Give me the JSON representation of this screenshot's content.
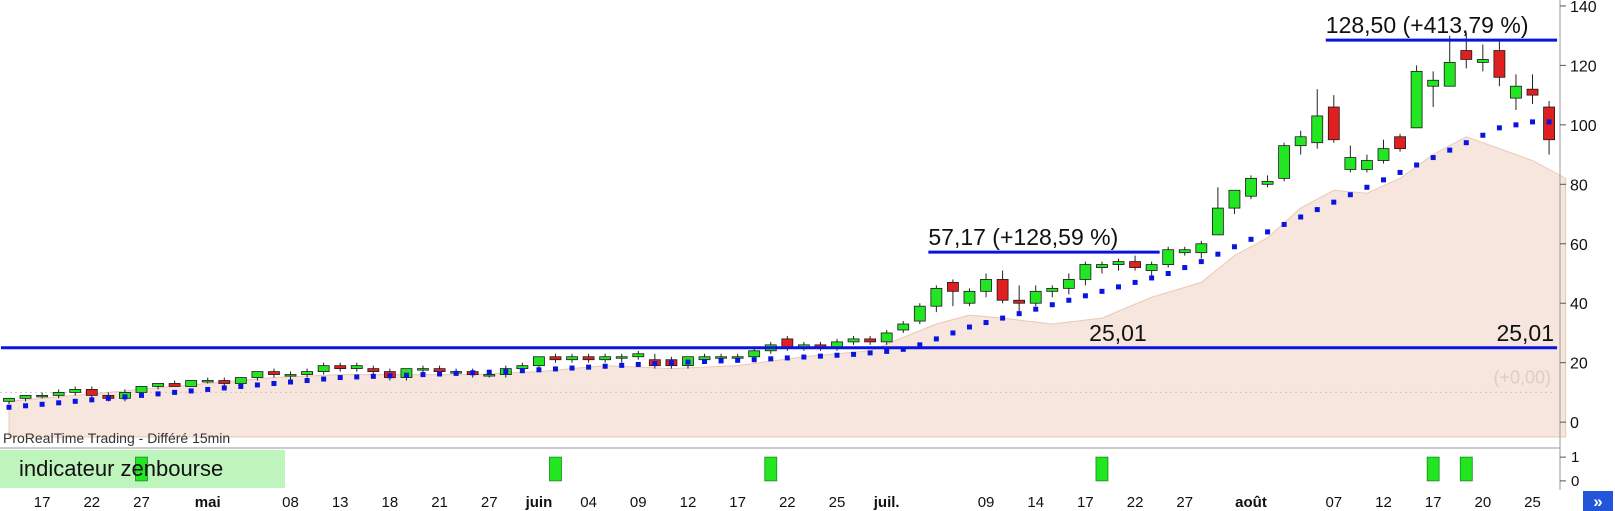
{
  "source_label": "ProRealTime Trading - Différé 15min",
  "indicator_label": "indicateur zenbourse",
  "nav_icon": "double-chevron-right-icon",
  "colors": {
    "up": "#22e622",
    "down": "#e02020",
    "wick": "#222222",
    "trail_dots": "#0a14e0",
    "hlines": "#0a14e0",
    "area_fill": "#f6e6de",
    "area_stroke": "#ecc8b6",
    "signal": "#22e622",
    "indicator_label_bg": "#bdf5bd",
    "nav_button": "#2255d8"
  },
  "chart_data": {
    "type": "candlestick",
    "ylim": [
      -5,
      142
    ],
    "y_ticks": [
      "0",
      "20",
      "40",
      "60",
      "80",
      "100",
      "120",
      "140"
    ],
    "y_tick_values": [
      0,
      20,
      40,
      60,
      80,
      100,
      120,
      140
    ],
    "x_labels": [
      {
        "i": 2,
        "t": "17",
        "bold": false
      },
      {
        "i": 5,
        "t": "22",
        "bold": false
      },
      {
        "i": 8,
        "t": "27",
        "bold": false
      },
      {
        "i": 12,
        "t": "mai",
        "bold": true
      },
      {
        "i": 17,
        "t": "08",
        "bold": false
      },
      {
        "i": 20,
        "t": "13",
        "bold": false
      },
      {
        "i": 23,
        "t": "18",
        "bold": false
      },
      {
        "i": 26,
        "t": "21",
        "bold": false
      },
      {
        "i": 29,
        "t": "27",
        "bold": false
      },
      {
        "i": 32,
        "t": "juin",
        "bold": true
      },
      {
        "i": 35,
        "t": "04",
        "bold": false
      },
      {
        "i": 38,
        "t": "09",
        "bold": false
      },
      {
        "i": 41,
        "t": "12",
        "bold": false
      },
      {
        "i": 44,
        "t": "17",
        "bold": false
      },
      {
        "i": 47,
        "t": "22",
        "bold": false
      },
      {
        "i": 50,
        "t": "25",
        "bold": false
      },
      {
        "i": 53,
        "t": "juil.",
        "bold": true
      },
      {
        "i": 59,
        "t": "09",
        "bold": false
      },
      {
        "i": 62,
        "t": "14",
        "bold": false
      },
      {
        "i": 65,
        "t": "17",
        "bold": false
      },
      {
        "i": 68,
        "t": "22",
        "bold": false
      },
      {
        "i": 71,
        "t": "27",
        "bold": false
      },
      {
        "i": 75,
        "t": "août",
        "bold": true
      },
      {
        "i": 80,
        "t": "07",
        "bold": false
      },
      {
        "i": 83,
        "t": "12",
        "bold": false
      },
      {
        "i": 86,
        "t": "17",
        "bold": false
      },
      {
        "i": 89,
        "t": "20",
        "bold": false
      },
      {
        "i": 92,
        "t": "25",
        "bold": false
      }
    ],
    "candles": [
      [
        7,
        8,
        6,
        8
      ],
      [
        8,
        9,
        7,
        9
      ],
      [
        9,
        10,
        8,
        9
      ],
      [
        9,
        11,
        8,
        10
      ],
      [
        10,
        12,
        9,
        11
      ],
      [
        11,
        12,
        8,
        9
      ],
      [
        9,
        10,
        7,
        8
      ],
      [
        8,
        11,
        7,
        10
      ],
      [
        10,
        12,
        9,
        12
      ],
      [
        12,
        13,
        11,
        13
      ],
      [
        13,
        14,
        12,
        12
      ],
      [
        12,
        14,
        12,
        14
      ],
      [
        14,
        15,
        13,
        14
      ],
      [
        14,
        15,
        12,
        13
      ],
      [
        13,
        15,
        12,
        15
      ],
      [
        15,
        17,
        14,
        17
      ],
      [
        17,
        18,
        15,
        16
      ],
      [
        16,
        17,
        14,
        16
      ],
      [
        16,
        18,
        15,
        17
      ],
      [
        17,
        20,
        16,
        19
      ],
      [
        19,
        20,
        17,
        18
      ],
      [
        18,
        20,
        17,
        19
      ],
      [
        18,
        19,
        16,
        17
      ],
      [
        17,
        18,
        14,
        15
      ],
      [
        15,
        18,
        14,
        18
      ],
      [
        18,
        19,
        16,
        18
      ],
      [
        18,
        19,
        16,
        17
      ],
      [
        17,
        18,
        16,
        17
      ],
      [
        17,
        18,
        15,
        16
      ],
      [
        16,
        17,
        15,
        16
      ],
      [
        16,
        19,
        15,
        18
      ],
      [
        18,
        20,
        17,
        19
      ],
      [
        19,
        22,
        18,
        22
      ],
      [
        22,
        23,
        20,
        21
      ],
      [
        21,
        23,
        20,
        22
      ],
      [
        22,
        23,
        20,
        21
      ],
      [
        21,
        23,
        20,
        22
      ],
      [
        22,
        23,
        20,
        22
      ],
      [
        22,
        24,
        21,
        23
      ],
      [
        21,
        23,
        18,
        19
      ],
      [
        21,
        22,
        18,
        19
      ],
      [
        19,
        22,
        18,
        22
      ],
      [
        21,
        23,
        20,
        22
      ],
      [
        22,
        23,
        21,
        22
      ],
      [
        22,
        23,
        21,
        22
      ],
      [
        22,
        25,
        21,
        24
      ],
      [
        24,
        27,
        23,
        26
      ],
      [
        28,
        29,
        24,
        25
      ],
      [
        25,
        27,
        24,
        26
      ],
      [
        26,
        27,
        24,
        25
      ],
      [
        25,
        28,
        24,
        27
      ],
      [
        27,
        29,
        26,
        28
      ],
      [
        28,
        29,
        26,
        27
      ],
      [
        27,
        31,
        26,
        30
      ],
      [
        31,
        34,
        30,
        33
      ],
      [
        34,
        40,
        33,
        39
      ],
      [
        39,
        46,
        37,
        45
      ],
      [
        47,
        48,
        39,
        44
      ],
      [
        40,
        45,
        39,
        44
      ],
      [
        44,
        50,
        42,
        48
      ],
      [
        48,
        51,
        40,
        41
      ],
      [
        41,
        46,
        37,
        40
      ],
      [
        40,
        46,
        39,
        44
      ],
      [
        44,
        46,
        42,
        45
      ],
      [
        45,
        50,
        43,
        48
      ],
      [
        48,
        54,
        46,
        53
      ],
      [
        52,
        54,
        50,
        53
      ],
      [
        53,
        55,
        51,
        54
      ],
      [
        54,
        56,
        51,
        52
      ],
      [
        51,
        54,
        49,
        53
      ],
      [
        53,
        59,
        52,
        58
      ],
      [
        57,
        59,
        56,
        58
      ],
      [
        57,
        61,
        55,
        60
      ],
      [
        63,
        79,
        64,
        72
      ],
      [
        72,
        78,
        70,
        78
      ],
      [
        76,
        83,
        75,
        82
      ],
      [
        80,
        83,
        79,
        81
      ],
      [
        82,
        94,
        81,
        93
      ],
      [
        93,
        98,
        90,
        96
      ],
      [
        94,
        112,
        92,
        103
      ],
      [
        106,
        110,
        94,
        95
      ],
      [
        85,
        93,
        84,
        89
      ],
      [
        85,
        90,
        84,
        88
      ],
      [
        88,
        95,
        87,
        92
      ],
      [
        96,
        97,
        91,
        92
      ],
      [
        99,
        120,
        99,
        118
      ],
      [
        113,
        118,
        106,
        115
      ],
      [
        113,
        130,
        113,
        121
      ],
      [
        125,
        131,
        119,
        122
      ],
      [
        121,
        127,
        118,
        122
      ],
      [
        125,
        128,
        113,
        116
      ],
      [
        109,
        117,
        105,
        113
      ],
      [
        112,
        117,
        107,
        110
      ],
      [
        106,
        108,
        90,
        95
      ]
    ],
    "trailing_stop": [
      5,
      5.5,
      6,
      6.5,
      7,
      7.5,
      8,
      8.5,
      9,
      9.5,
      10,
      10.5,
      11,
      11.5,
      12,
      12.5,
      13,
      13.5,
      14,
      14.5,
      15,
      15.2,
      15.4,
      15.6,
      15.8,
      16,
      16.2,
      16.4,
      16.6,
      16.8,
      17,
      17.3,
      17.6,
      17.9,
      18.2,
      18.5,
      18.8,
      19.1,
      19.4,
      19.7,
      20,
      20.2,
      20.4,
      20.6,
      20.8,
      21,
      21.3,
      21.6,
      21.9,
      22.2,
      22.5,
      22.8,
      23.3,
      23.8,
      24.5,
      26,
      28,
      30,
      32,
      33.5,
      35,
      36.5,
      38,
      39.5,
      41,
      42.5,
      44,
      45.5,
      47,
      48.5,
      50,
      52,
      54,
      56.5,
      59,
      61.5,
      64,
      66.5,
      69,
      71.5,
      74,
      76.5,
      79,
      81.5,
      84,
      86.5,
      89,
      91.5,
      94,
      96.5,
      99,
      100,
      101,
      101
    ],
    "area": [
      [
        0,
        7
      ],
      [
        4,
        9
      ],
      [
        8,
        11
      ],
      [
        12,
        13
      ],
      [
        16,
        15
      ],
      [
        20,
        16
      ],
      [
        24,
        16
      ],
      [
        28,
        16
      ],
      [
        32,
        17
      ],
      [
        36,
        19
      ],
      [
        40,
        18
      ],
      [
        44,
        19
      ],
      [
        48,
        22
      ],
      [
        52,
        24
      ],
      [
        56,
        33
      ],
      [
        58,
        36
      ],
      [
        60,
        35
      ],
      [
        63,
        33
      ],
      [
        66,
        35
      ],
      [
        69,
        42
      ],
      [
        72,
        47
      ],
      [
        74,
        56
      ],
      [
        76,
        62
      ],
      [
        78,
        72
      ],
      [
        80,
        78
      ],
      [
        82,
        77
      ],
      [
        84,
        82
      ],
      [
        86,
        90
      ],
      [
        88,
        96
      ],
      [
        90,
        92
      ],
      [
        92,
        88
      ],
      [
        94,
        82
      ]
    ],
    "hlines": [
      {
        "value": 25.01,
        "from": 0,
        "to": 93,
        "label": "25,01",
        "label_at": 66
      },
      {
        "value": 25.01,
        "label": "25,01",
        "label_at": 92
      },
      {
        "value": 57.17,
        "from": 56,
        "to": 69,
        "label": "57,17 (+128,59 %)"
      },
      {
        "value": 128.5,
        "from": 80,
        "to": 93,
        "label": "128,50 (+413,79 %)"
      }
    ],
    "faint_label": "(+0,00)",
    "faint_label_value": 13,
    "dotted_baseline_value": 10,
    "indicator": {
      "ylim": [
        -0.3,
        1.3
      ],
      "y_ticks": [
        "1",
        "0"
      ],
      "y_tick_values": [
        1,
        0
      ],
      "signals_at": [
        8,
        33,
        46,
        66,
        86,
        88
      ]
    }
  }
}
